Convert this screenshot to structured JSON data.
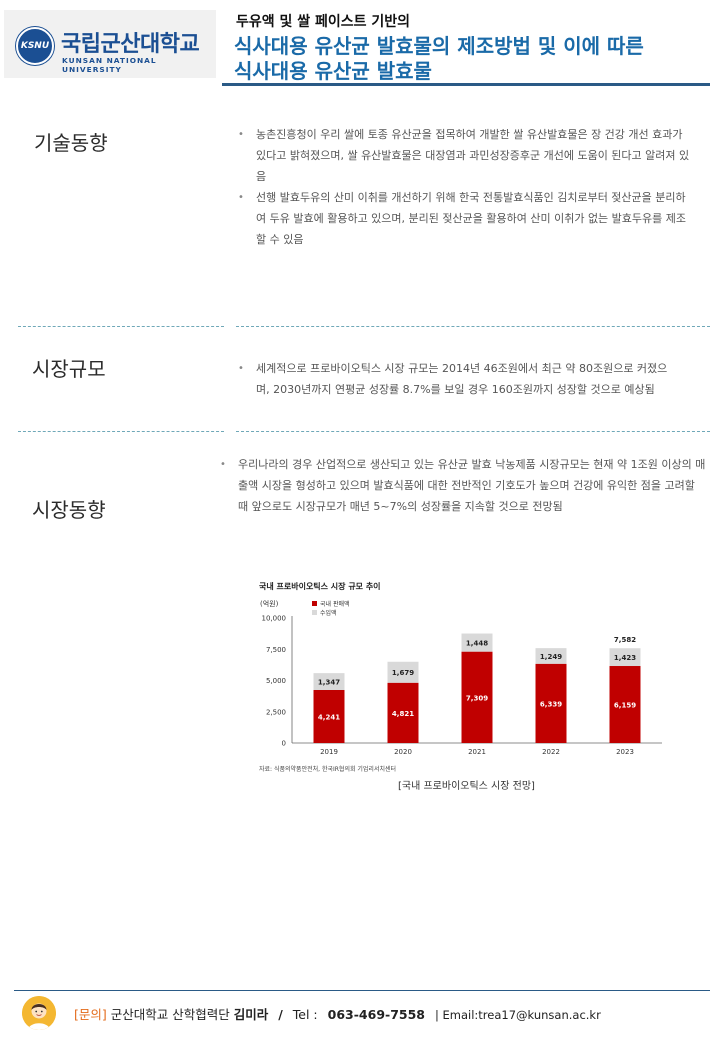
{
  "header": {
    "logo": {
      "seal_text": "KSNU",
      "name": "국립군산대학교",
      "english": "KUNSAN NATIONAL UNIVERSITY"
    },
    "subtitle": "두유액 및 쌀 페이스트 기반의",
    "title_line1": "식사대용 유산균 발효물의 제조방법 및 이에 따른",
    "title_line2": "식사대용 유산균 발효물"
  },
  "sections": {
    "tech": {
      "label": "기술동향",
      "bullets": [
        "농촌진흥청이 우리 쌀에 토종 유산균을 접목하여 개발한 쌀 유산발효물은 장 건강 개선 효과가 있다고 밝혀졌으며, 쌀 유산발효물은 대장염과 과민성장증후군 개선에 도움이 된다고 알려져 있음",
        "선행 발효두유의 산미 이취를 개선하기 위해 한국 전통발효식품인 김치로부터 젖산균을 분리하여 두유 발효에 활용하고 있으며, 분리된 젖산균을 활용하여 산미 이취가 없는 발효두유를 제조할 수 있음"
      ]
    },
    "market_size": {
      "label": "시장규모",
      "bullets": [
        "세계적으로 프로바이오틱스 시장 규모는 2014년 46조원에서 최근 약 80조원으로 커졌으며, 2030년까지 연평균 성장률 8.7%를 보일 경우 160조원까지 성장할 것으로 예상됨"
      ]
    },
    "market_trend": {
      "label": "시장동향",
      "bullets": [
        "우리나라의 경우 산업적으로 생산되고 있는 유산균 발효 낙농제품 시장규모는 현재 약 1조원 이상의 매출액 시장을 형성하고 있으며 발효식품에 대한 전반적인 기호도가 높으며 건강에 유익한 점을 고려할 때 앞으로도 시장규모가 매년 5~7%의 성장률을 지속할 것으로 전망됨"
      ]
    }
  },
  "chart_data": {
    "type": "bar",
    "title": "국내 프로바이오틱스 시장 규모 추이",
    "unit": "(억원)",
    "categories": [
      "2019",
      "2020",
      "2021",
      "2022",
      "2023"
    ],
    "series": [
      {
        "name": "국내 판매액",
        "values": [
          4241,
          4821,
          7309,
          6339,
          6159
        ],
        "color": "#c00000"
      },
      {
        "name": "수입액",
        "values": [
          1347,
          1679,
          1448,
          1249,
          1423
        ],
        "color": "#d9d9d9"
      }
    ],
    "value_labels": {
      "domestic": [
        "4,241",
        "4,821",
        "7,309",
        "6,339",
        "6,159"
      ],
      "import": [
        "1,347",
        "1,679",
        "1,448",
        "1,249",
        "1,423"
      ]
    },
    "total_labels": [
      "",
      "",
      "",
      "",
      "7,582"
    ],
    "yticks": [
      "0",
      "2,500",
      "5,000",
      "7,500",
      "10,000"
    ],
    "yticks_values": [
      0,
      2500,
      5000,
      7500,
      10000
    ],
    "ylim": [
      0,
      10000
    ],
    "stacked": true,
    "legend_position": "top-left",
    "source": "자료: 식품의약품안전처, 한국IR협의회 기업리서치센터",
    "caption": "[국내 프로바이오틱스 시장 전망]"
  },
  "footer": {
    "contact_tag": "[문의]",
    "org": "군산대학교 산학협력단",
    "person": "김미라",
    "slash": "/",
    "tel_label": "Tel :",
    "tel": "063-469-7558",
    "email": "| Email:trea17@kunsan.ac.kr"
  },
  "colors": {
    "title_blue": "#1a6aa8",
    "rule_navy": "#2a5a86",
    "dot_line": "#6fa8b8",
    "accent_orange": "#e36b1b"
  }
}
